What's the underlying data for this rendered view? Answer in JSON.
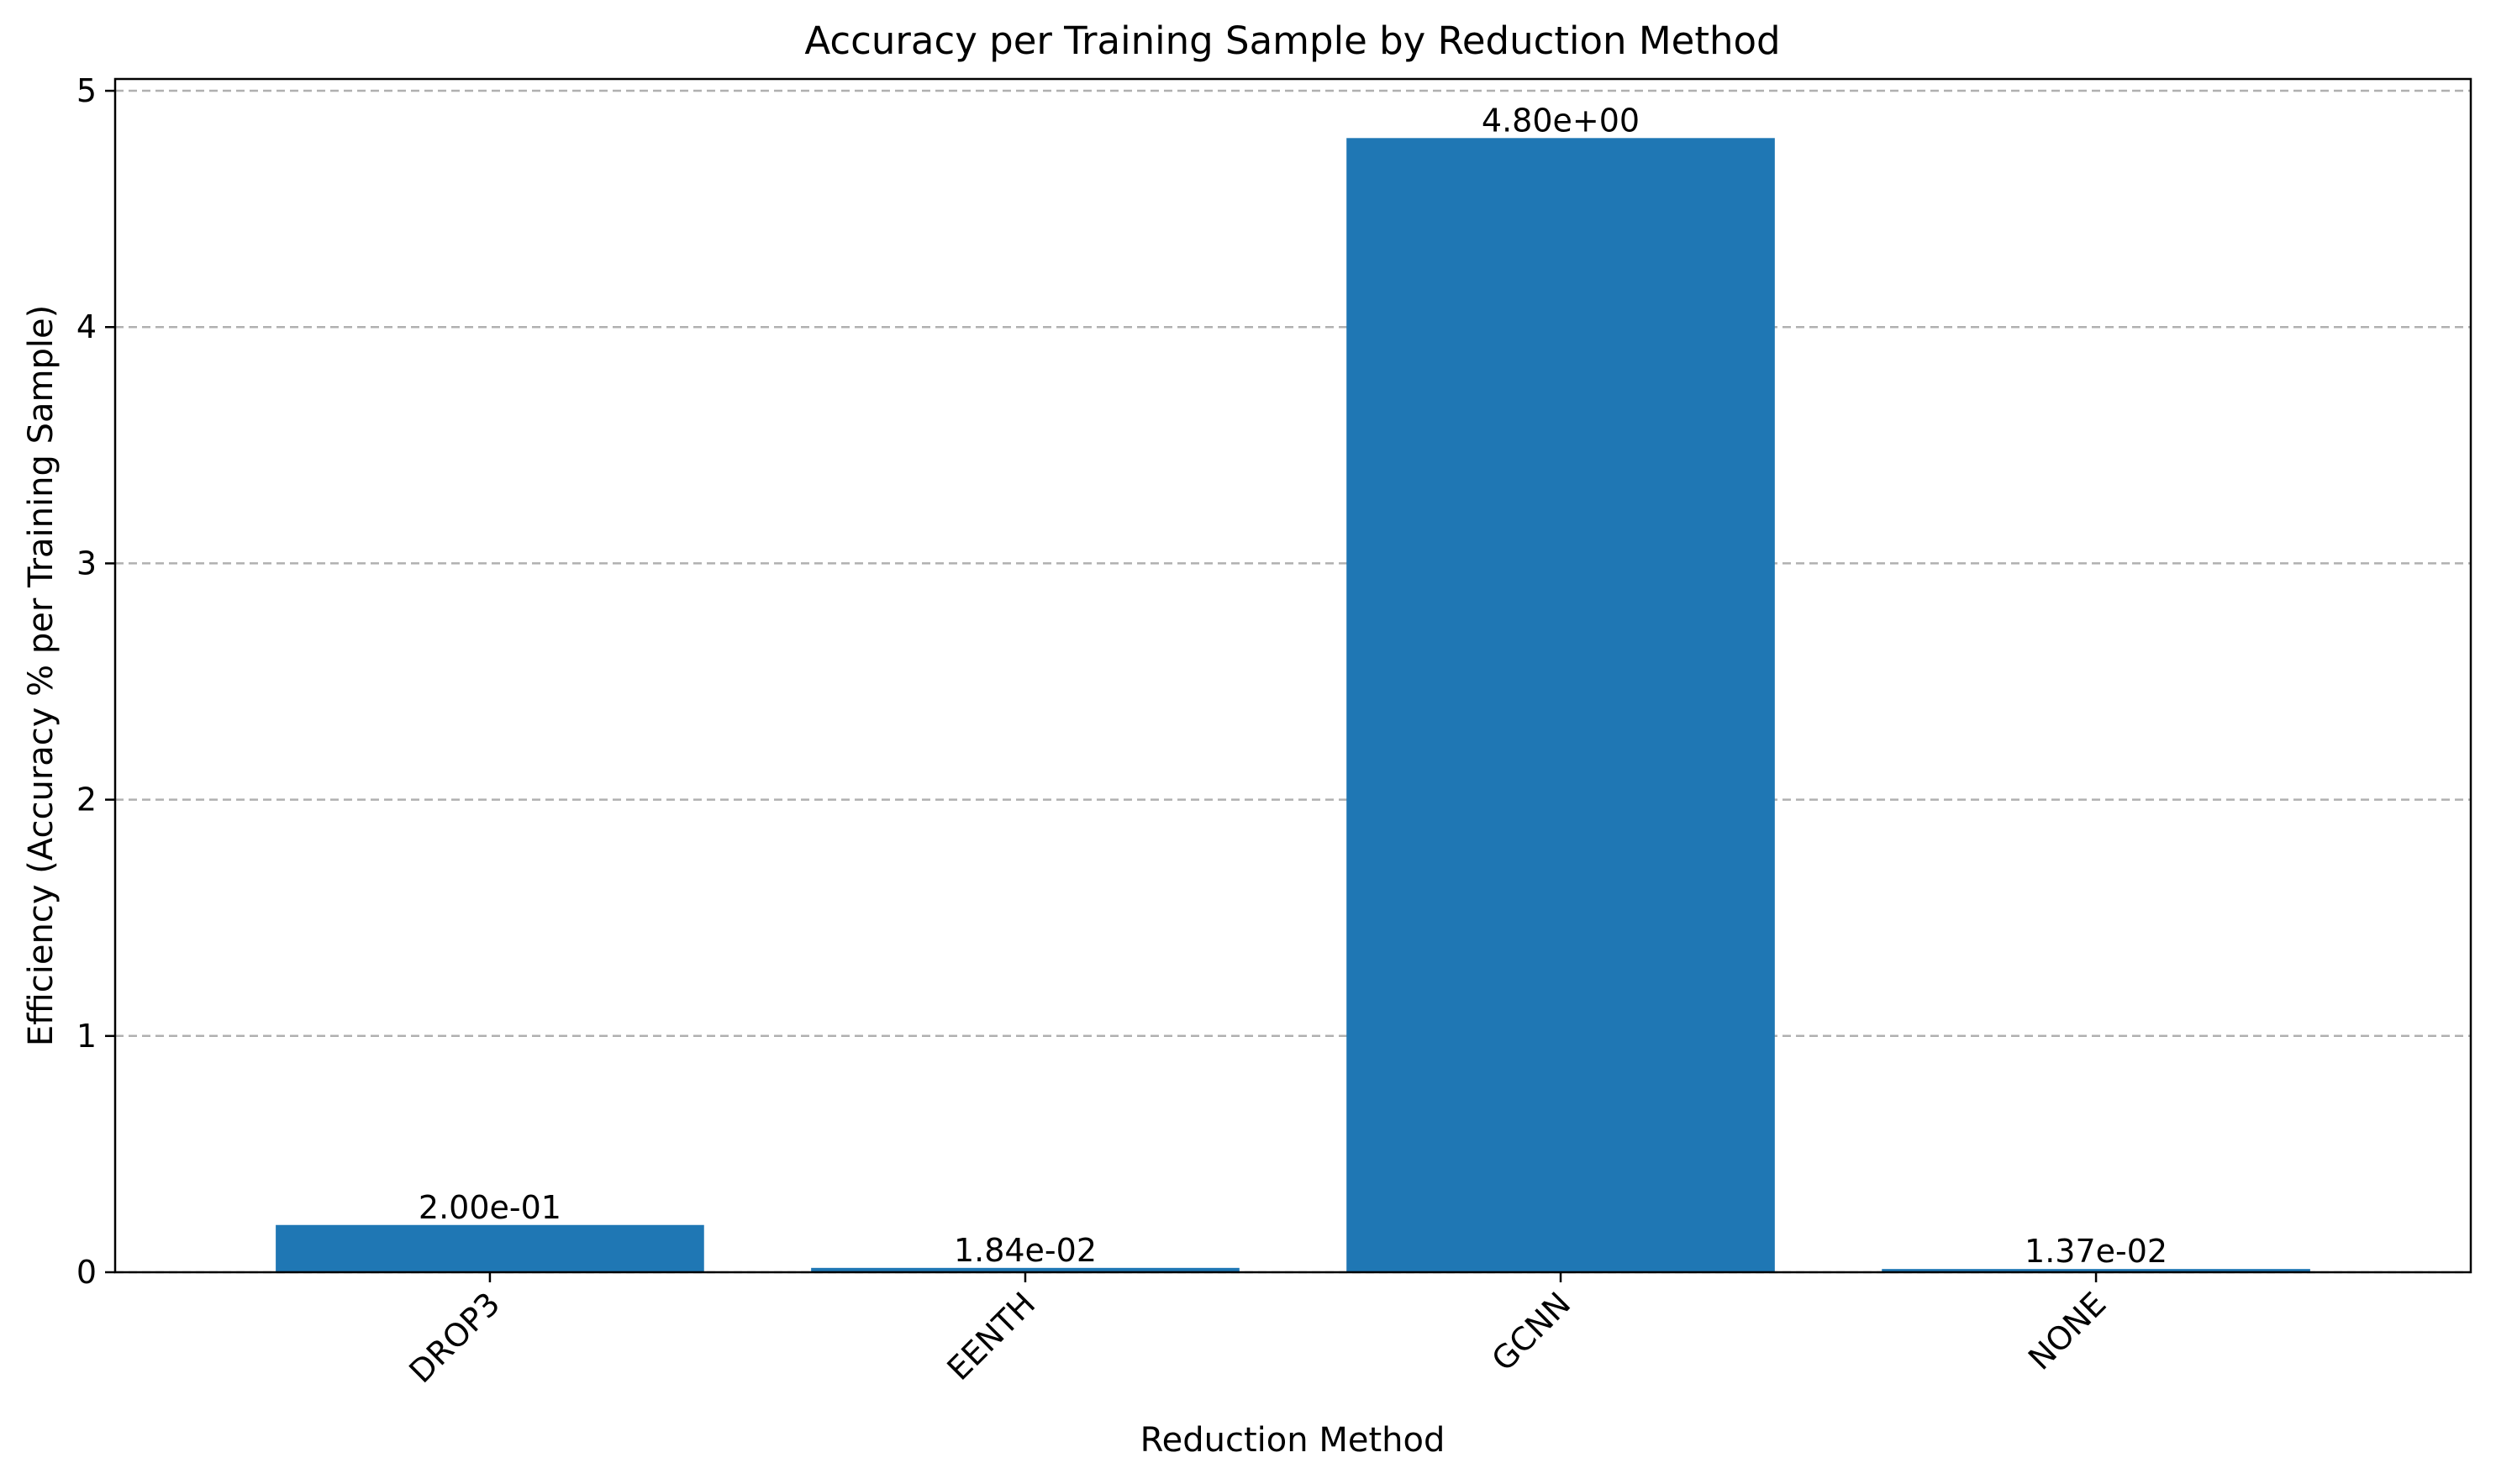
{
  "chart_data": {
    "type": "bar",
    "title": "Accuracy per Training Sample by Reduction Method",
    "xlabel": "Reduction Method",
    "ylabel": "Efficiency (Accuracy % per Training Sample)",
    "categories": [
      "DROP3",
      "EENTH",
      "GCNN",
      "NONE"
    ],
    "values": [
      0.2,
      0.0184,
      4.8,
      0.0137
    ],
    "data_labels": [
      "2.00e-01",
      "1.84e-02",
      "4.80e+00",
      "1.37e-02"
    ],
    "ylim": [
      0,
      5.05
    ],
    "yticks": [
      0,
      1,
      2,
      3,
      4,
      5
    ],
    "ytick_labels": [
      "0",
      "1",
      "2",
      "3",
      "4",
      "5"
    ],
    "x_tick_rotation_deg": 45,
    "grid": "y-dashed",
    "bar_color": "#1f77b4",
    "grid_color": "#b0b0b0"
  }
}
